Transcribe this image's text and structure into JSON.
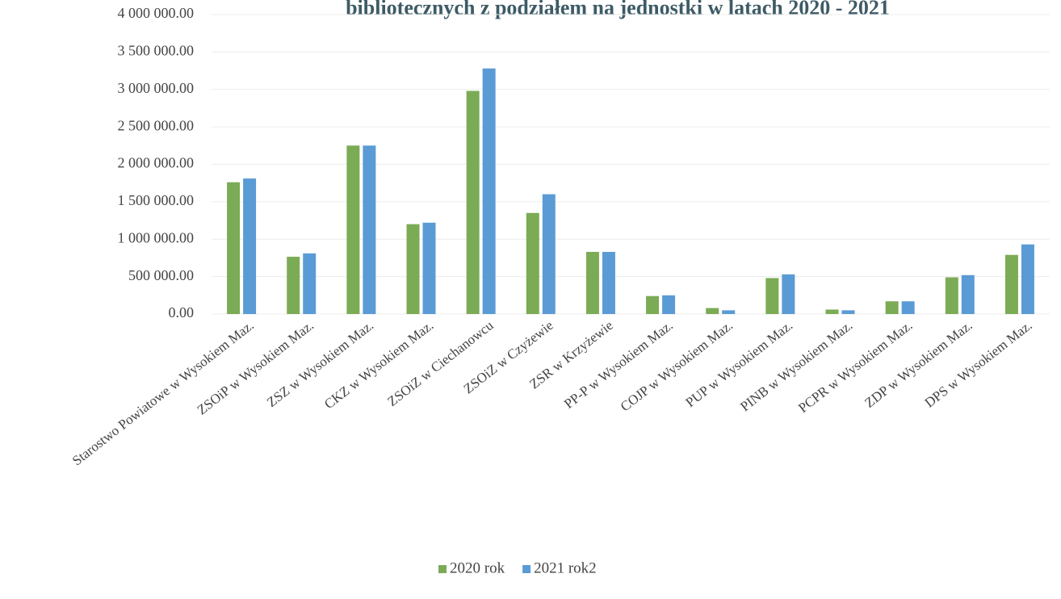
{
  "chart_data": {
    "type": "bar",
    "title": "bibliotecznych z podziałem na jednostki w latach 2020 - 2021",
    "categories": [
      "Starostwo Powiatowe w Wysokiem Maz.",
      "ZSOiP w Wysokiem Maz.",
      "ZSZ w Wysokiem Maz.",
      "CKZ w Wysokiem Maz.",
      "ZSOiZ w Ciechanowcu",
      "ZSOiZ w Czyżewie",
      "ZSR w Krzyżewie",
      "PP-P w Wysokiem Maz.",
      "COJP w Wysokiem Maz.",
      "PUP w Wysokiem Maz.",
      "PINB w Wysokiem Maz.",
      "PCPR w Wysokiem Maz.",
      "ZDP w Wysokiem Maz.",
      "DPS w Wysokiem Maz."
    ],
    "series": [
      {
        "name": "2020 rok",
        "color": "#7cab56",
        "values": [
          1760000,
          765000,
          2250000,
          1200000,
          2980000,
          1350000,
          830000,
          240000,
          80000,
          480000,
          60000,
          170000,
          490000,
          790000
        ]
      },
      {
        "name": "2021 rok2",
        "color": "#5b9bd5",
        "values": [
          1810000,
          810000,
          2250000,
          1220000,
          3280000,
          1600000,
          830000,
          250000,
          50000,
          530000,
          50000,
          170000,
          520000,
          930000
        ]
      }
    ],
    "ylim": [
      0,
      4000000
    ],
    "yticks": [
      {
        "value": 0,
        "label": "0.00"
      },
      {
        "value": 500000,
        "label": "500 000.00"
      },
      {
        "value": 1000000,
        "label": "1 000 000.00"
      },
      {
        "value": 1500000,
        "label": "1 500 000.00"
      },
      {
        "value": 2000000,
        "label": "2 000 000.00"
      },
      {
        "value": 2500000,
        "label": "2 500 000.00"
      },
      {
        "value": 3000000,
        "label": "3 000 000.00"
      },
      {
        "value": 3500000,
        "label": "3 500 000.00"
      },
      {
        "value": 4000000,
        "label": "4 000 000.00"
      }
    ],
    "grid": true,
    "legend": "bottom"
  }
}
